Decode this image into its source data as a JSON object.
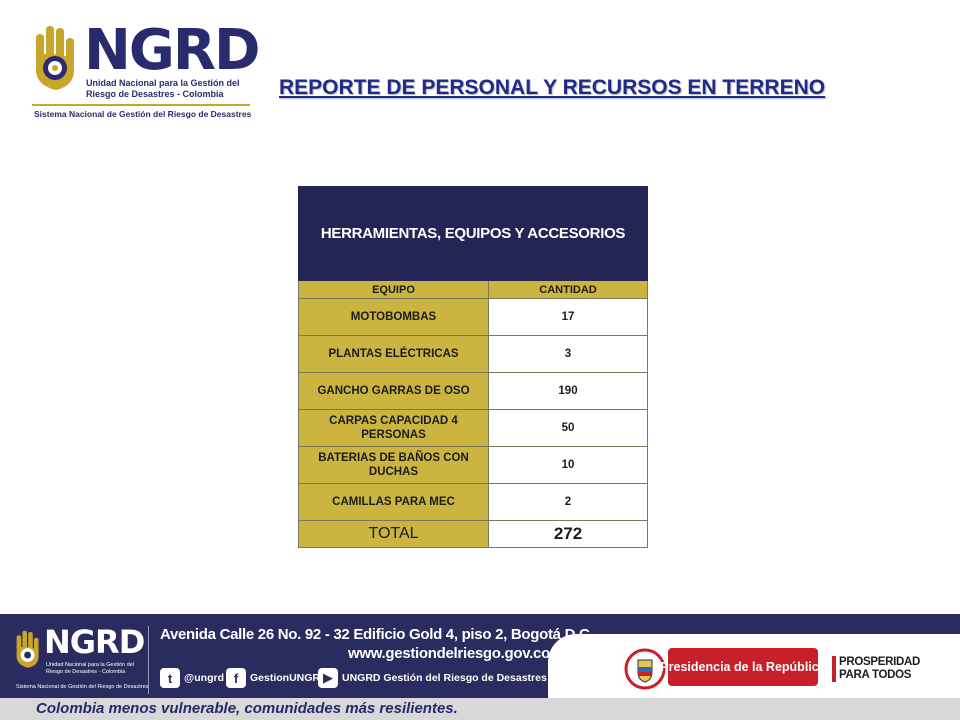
{
  "header": {
    "logo": {
      "wordmark": "NGRD",
      "org_line1": "Unidad Nacional para la Gestión del",
      "org_line2": "Riesgo de Desastres - Colombia",
      "system": "Sistema Nacional de Gestión del Riesgo de Desastres"
    },
    "title": "REPORTE DE PERSONAL Y RECURSOS EN TERRENO"
  },
  "table": {
    "title": "HERRAMIENTAS, EQUIPOS Y ACCESORIOS",
    "columns": [
      "EQUIPO",
      "CANTIDAD"
    ],
    "rows": [
      {
        "equipo": "MOTOBOMBAS",
        "cantidad": "17"
      },
      {
        "equipo": "PLANTAS ELÉCTRICAS",
        "cantidad": "3"
      },
      {
        "equipo": "GANCHO GARRAS DE OSO",
        "cantidad": "190"
      },
      {
        "equipo": "CARPAS CAPACIDAD 4 PERSONAS",
        "cantidad": "50"
      },
      {
        "equipo": "BATERIAS DE BAÑOS CON DUCHAS",
        "cantidad": "10"
      },
      {
        "equipo": "CAMILLAS PARA MEC",
        "cantidad": "2"
      }
    ],
    "total_label": "TOTAL",
    "total_value": "272"
  },
  "footer": {
    "logo": {
      "wordmark": "NGRD",
      "org_line1": "Unidad Nacional para la Gestión del",
      "org_line2": "Riesgo de Desastres - Colombia",
      "system": "Sistema Nacional de Gestión del Riesgo de Desastres"
    },
    "address": "Avenida Calle 26 No. 92 - 32 Edificio Gold 4, piso 2, Bogotá D.C",
    "website": "www.gestiondelriesgo.gov.co",
    "social": [
      {
        "icon": "twitter-icon",
        "glyph": "t",
        "label": "@ungrd"
      },
      {
        "icon": "facebook-icon",
        "glyph": "f",
        "label": "GestionUNGRD"
      },
      {
        "icon": "youtube-icon",
        "glyph": "▶",
        "label": "UNGRD Gestión del Riesgo de Desastres"
      }
    ],
    "presidencia": "Presidencia de la República",
    "prosperidad_line1": "PROSPERIDAD",
    "prosperidad_line2": "PARA TODOS",
    "slogan": "Colombia menos vulnerable, comunidades más resilientes."
  },
  "colors": {
    "navy": "#252555",
    "gold": "#cbb540",
    "title_blue": "#1f2a8c",
    "red": "#c8202a"
  }
}
